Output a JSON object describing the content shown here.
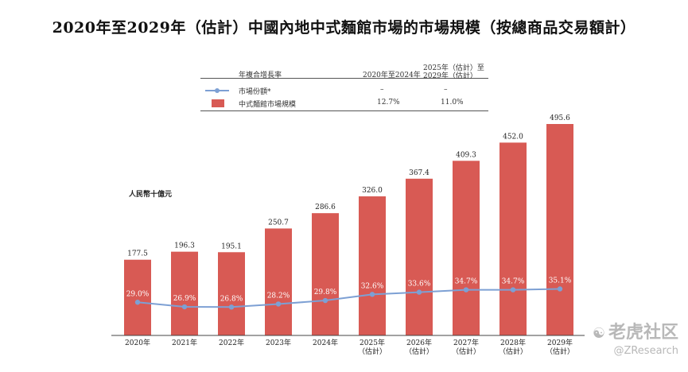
{
  "title": "2020年至2029年（估計）中國內地中式麵館市場的市場規模（按總商品交易額計）",
  "unit_label": "人民幣十億元",
  "legend_table": {
    "header": {
      "label": "年複合增長率",
      "col1": "2020年至2024年",
      "col2_line1": "2025年（估計）至",
      "col2_line2": "2029年（估計）"
    },
    "rows": [
      {
        "label": "市場份額*",
        "col1": "–",
        "col2": "–",
        "symbol": "line"
      },
      {
        "label": "中式麵館市場規模",
        "col1": "12.7%",
        "col2": "11.0%",
        "symbol": "bar"
      }
    ]
  },
  "chart_data": {
    "type": "bar",
    "categories": [
      [
        "2020年"
      ],
      [
        "2021年"
      ],
      [
        "2022年"
      ],
      [
        "2023年"
      ],
      [
        "2024年"
      ],
      [
        "2025年",
        "（估計）"
      ],
      [
        "2026年",
        "（估計）"
      ],
      [
        "2027年",
        "（估計）"
      ],
      [
        "2028年",
        "（估計）"
      ],
      [
        "2029年",
        "（估計）"
      ]
    ],
    "series": [
      {
        "name": "中式麵館市場規模",
        "type": "bar",
        "values": [
          177.5,
          196.3,
          195.1,
          250.7,
          286.6,
          326.0,
          367.4,
          409.3,
          452.0,
          495.6
        ],
        "labels": [
          "177.5",
          "196.3",
          "195.1",
          "250.7",
          "286.6",
          "326.0",
          "367.4",
          "409.3",
          "452.0",
          "495.6"
        ],
        "color": "#d85a54"
      },
      {
        "name": "市場份額*",
        "type": "line",
        "values": [
          29.0,
          26.9,
          26.8,
          28.2,
          29.8,
          32.6,
          33.6,
          34.7,
          34.7,
          35.1
        ],
        "labels": [
          "29.0%",
          "26.9%",
          "26.8%",
          "28.2%",
          "29.8%",
          "32.6%",
          "33.6%",
          "34.7%",
          "34.7%",
          "35.1%"
        ],
        "color": "#7da0d4"
      }
    ],
    "ylim_bars": [
      0,
      500
    ],
    "ylim_line": [
      0,
      100
    ],
    "grid": false,
    "legend_position": "top table"
  },
  "watermark": {
    "main": "老虎社区",
    "sub": "@ZResearch",
    "icon": "tiger-logo-icon"
  }
}
